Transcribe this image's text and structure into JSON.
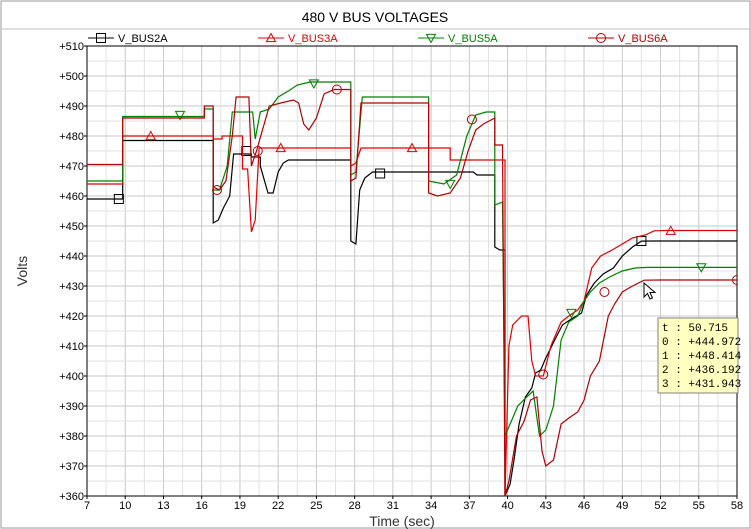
{
  "chart_data": {
    "type": "line",
    "title": "480 V BUS VOLTAGES",
    "xlabel": "Time (sec)",
    "ylabel": "Volts",
    "xlim": [
      7,
      58
    ],
    "ylim": [
      360,
      510
    ],
    "xticks": [
      7,
      10,
      13,
      16,
      19,
      22,
      25,
      28,
      31,
      34,
      37,
      40,
      43,
      46,
      49,
      52,
      55,
      58
    ],
    "yticks": [
      360,
      370,
      380,
      390,
      400,
      410,
      420,
      430,
      440,
      450,
      460,
      470,
      480,
      490,
      500,
      510
    ],
    "ytick_labels": [
      "+360",
      "+370",
      "+380",
      "+390",
      "+400",
      "+410",
      "+420",
      "+430",
      "+440",
      "+450",
      "+460",
      "+470",
      "+480",
      "+490",
      "+500",
      "+510"
    ],
    "grid": true,
    "legend_position": "top",
    "series": [
      {
        "name": "V_BUS2A",
        "color": "#000000",
        "marker": "square",
        "markers_at": [
          [
            9.5,
            459
          ],
          [
            19.5,
            475
          ],
          [
            30.0,
            467.5
          ],
          [
            50.5,
            445
          ]
        ],
        "points": [
          [
            7,
            459
          ],
          [
            9.8,
            459
          ],
          [
            9.8,
            478.5
          ],
          [
            16.9,
            478.5
          ],
          [
            16.9,
            451
          ],
          [
            17.3,
            452
          ],
          [
            17.7,
            456
          ],
          [
            18.2,
            460
          ],
          [
            18.5,
            474
          ],
          [
            19.9,
            474
          ],
          [
            19.9,
            473
          ],
          [
            20.6,
            473
          ],
          [
            20.6,
            470
          ],
          [
            21.2,
            461
          ],
          [
            21.6,
            461
          ],
          [
            22.0,
            468
          ],
          [
            22.4,
            471
          ],
          [
            22.8,
            472
          ],
          [
            27.7,
            472
          ],
          [
            27.7,
            445
          ],
          [
            28.1,
            444
          ],
          [
            28.4,
            462
          ],
          [
            28.8,
            466
          ],
          [
            29.4,
            468
          ],
          [
            37.3,
            468
          ],
          [
            37.6,
            467
          ],
          [
            39.0,
            467
          ],
          [
            39.0,
            443
          ],
          [
            39.4,
            442
          ],
          [
            39.8,
            442
          ],
          [
            39.8,
            360
          ],
          [
            40.2,
            364
          ],
          [
            40.5,
            372
          ],
          [
            40.9,
            384
          ],
          [
            41.4,
            393
          ],
          [
            41.9,
            396
          ],
          [
            42.2,
            401
          ],
          [
            42.6,
            402
          ],
          [
            43.0,
            406
          ],
          [
            43.7,
            412
          ],
          [
            44.3,
            417
          ],
          [
            45.0,
            419
          ],
          [
            45.8,
            421
          ],
          [
            46.2,
            427
          ],
          [
            46.8,
            431
          ],
          [
            47.5,
            434
          ],
          [
            48.3,
            436
          ],
          [
            49.0,
            440
          ],
          [
            49.8,
            443
          ],
          [
            50.5,
            444.97
          ],
          [
            51.5,
            445
          ],
          [
            58,
            445
          ]
        ]
      },
      {
        "name": "V_BUS3A",
        "color": "#e00000",
        "marker": "triangle-up",
        "markers_at": [
          [
            12,
            480
          ],
          [
            22.2,
            476
          ],
          [
            32.5,
            476
          ],
          [
            52.8,
            448.4
          ]
        ],
        "points": [
          [
            7,
            464
          ],
          [
            9.8,
            464
          ],
          [
            9.8,
            480
          ],
          [
            16.9,
            480
          ],
          [
            16.9,
            479
          ],
          [
            17.6,
            479
          ],
          [
            17.6,
            480
          ],
          [
            19.2,
            480
          ],
          [
            19.2,
            469
          ],
          [
            19.6,
            469
          ],
          [
            19.9,
            448
          ],
          [
            20.2,
            452
          ],
          [
            20.5,
            476
          ],
          [
            27.7,
            476
          ],
          [
            27.7,
            470
          ],
          [
            28.1,
            471
          ],
          [
            28.5,
            476
          ],
          [
            35.5,
            476
          ],
          [
            35.5,
            472
          ],
          [
            37.8,
            472
          ],
          [
            39.8,
            472
          ],
          [
            39.8,
            360
          ],
          [
            40.1,
            410
          ],
          [
            40.4,
            417
          ],
          [
            41.1,
            420
          ],
          [
            41.6,
            420
          ],
          [
            41.9,
            405
          ],
          [
            42.2,
            400
          ],
          [
            42.8,
            400
          ],
          [
            43.4,
            410
          ],
          [
            44.2,
            418
          ],
          [
            44.8,
            420
          ],
          [
            45.5,
            422
          ],
          [
            46.0,
            425
          ],
          [
            46.6,
            436
          ],
          [
            47.3,
            440
          ],
          [
            48.2,
            442
          ],
          [
            49.0,
            444
          ],
          [
            49.8,
            446
          ],
          [
            50.8,
            447
          ],
          [
            51.5,
            448.41
          ],
          [
            52.5,
            448.5
          ],
          [
            58,
            448.5
          ]
        ]
      },
      {
        "name": "V_BUS5A",
        "color": "#008000",
        "marker": "triangle-down",
        "markers_at": [
          [
            14.3,
            487
          ],
          [
            24.8,
            497.5
          ],
          [
            35.5,
            464
          ],
          [
            45,
            421
          ],
          [
            55.2,
            436.2
          ]
        ],
        "points": [
          [
            7,
            465
          ],
          [
            9.8,
            465
          ],
          [
            9.8,
            486.5
          ],
          [
            14.0,
            486.5
          ],
          [
            16.2,
            486.5
          ],
          [
            16.2,
            489
          ],
          [
            16.9,
            489
          ],
          [
            16.9,
            462
          ],
          [
            17.4,
            462
          ],
          [
            18.0,
            470
          ],
          [
            18.4,
            488
          ],
          [
            19.0,
            488
          ],
          [
            20.0,
            488
          ],
          [
            20.2,
            479
          ],
          [
            20.6,
            488
          ],
          [
            21.3,
            489
          ],
          [
            22.0,
            493
          ],
          [
            22.8,
            495
          ],
          [
            23.5,
            497
          ],
          [
            24.5,
            498
          ],
          [
            27.7,
            498
          ],
          [
            27.7,
            467
          ],
          [
            28.1,
            468
          ],
          [
            28.6,
            493
          ],
          [
            33.8,
            493
          ],
          [
            33.8,
            465
          ],
          [
            35.0,
            464
          ],
          [
            36.0,
            467
          ],
          [
            36.8,
            480
          ],
          [
            37.5,
            487
          ],
          [
            38.3,
            488
          ],
          [
            39.0,
            488
          ],
          [
            39.0,
            457
          ],
          [
            39.6,
            458
          ],
          [
            39.8,
            380
          ],
          [
            40.2,
            384
          ],
          [
            40.8,
            390
          ],
          [
            41.5,
            393
          ],
          [
            42.0,
            395
          ],
          [
            42.5,
            380
          ],
          [
            43.0,
            382
          ],
          [
            43.6,
            390
          ],
          [
            44.2,
            412
          ],
          [
            44.8,
            418
          ],
          [
            45.5,
            420
          ],
          [
            46.0,
            425
          ],
          [
            46.5,
            428
          ],
          [
            47.2,
            431
          ],
          [
            48.0,
            433
          ],
          [
            49.0,
            435
          ],
          [
            50.0,
            436
          ],
          [
            51.0,
            436.19
          ],
          [
            52,
            436.2
          ],
          [
            58,
            436.2
          ]
        ]
      },
      {
        "name": "V_BUS6A",
        "color": "#b00000",
        "marker": "circle",
        "markers_at": [
          [
            17.2,
            462
          ],
          [
            20.4,
            475
          ],
          [
            26.6,
            495.5
          ],
          [
            37.2,
            485.5
          ],
          [
            42.8,
            400.5
          ],
          [
            47.6,
            428
          ],
          [
            58,
            432
          ]
        ],
        "points": [
          [
            7,
            470.5
          ],
          [
            9.8,
            470.5
          ],
          [
            9.8,
            486
          ],
          [
            16.2,
            486
          ],
          [
            16.2,
            490
          ],
          [
            16.9,
            490
          ],
          [
            16.9,
            463
          ],
          [
            17.4,
            462
          ],
          [
            17.9,
            465
          ],
          [
            18.4,
            480
          ],
          [
            18.7,
            493
          ],
          [
            19.7,
            493
          ],
          [
            19.9,
            470
          ],
          [
            20.3,
            475
          ],
          [
            21.3,
            490
          ],
          [
            22.2,
            491
          ],
          [
            23.2,
            492
          ],
          [
            23.6,
            491
          ],
          [
            24.0,
            484
          ],
          [
            24.4,
            482
          ],
          [
            25.0,
            486
          ],
          [
            25.6,
            494
          ],
          [
            26.4,
            495.5
          ],
          [
            27.7,
            495.5
          ],
          [
            27.7,
            465
          ],
          [
            28.1,
            466
          ],
          [
            28.5,
            491
          ],
          [
            33.8,
            491
          ],
          [
            33.8,
            461
          ],
          [
            34.5,
            460
          ],
          [
            35.5,
            461
          ],
          [
            36.3,
            466
          ],
          [
            36.9,
            475
          ],
          [
            37.5,
            482
          ],
          [
            38.1,
            484
          ],
          [
            39.0,
            486
          ],
          [
            39.0,
            477
          ],
          [
            39.6,
            477
          ],
          [
            39.8,
            360
          ],
          [
            40.1,
            365
          ],
          [
            40.7,
            380
          ],
          [
            41.3,
            385
          ],
          [
            41.8,
            392
          ],
          [
            42.3,
            393
          ],
          [
            42.7,
            375
          ],
          [
            43.0,
            370
          ],
          [
            43.6,
            372
          ],
          [
            44.2,
            384
          ],
          [
            44.8,
            386
          ],
          [
            45.5,
            388
          ],
          [
            46.0,
            392
          ],
          [
            46.5,
            400
          ],
          [
            47.2,
            405
          ],
          [
            47.9,
            420
          ],
          [
            48.4,
            424
          ],
          [
            49.0,
            428
          ],
          [
            49.8,
            430
          ],
          [
            50.7,
            431.94
          ],
          [
            52,
            432
          ],
          [
            58,
            432
          ]
        ]
      }
    ],
    "tooltip": {
      "lines": [
        "t : 50.715",
        "0 : +444.972",
        "1 : +448.414",
        "2 : +436.192",
        "3 : +431.943"
      ],
      "background": "#ffffc0"
    }
  }
}
